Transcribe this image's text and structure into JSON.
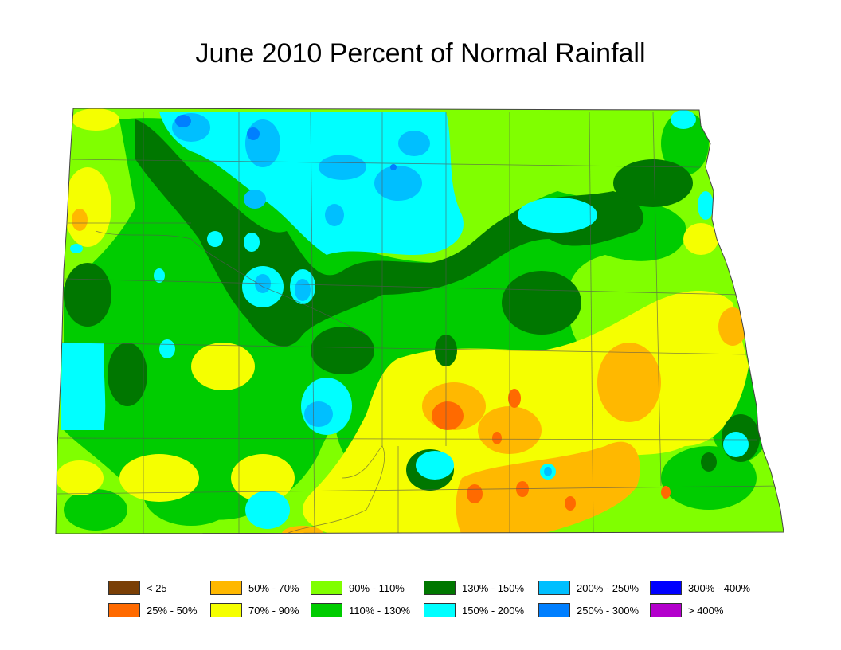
{
  "title": "June 2010 Percent of Normal Rainfall",
  "legend": [
    {
      "label": "< 25",
      "color": "#7a3f06"
    },
    {
      "label": "25% - 50%",
      "color": "#ff6a00"
    },
    {
      "label": "50% - 70%",
      "color": "#ffb800"
    },
    {
      "label": "70% - 90%",
      "color": "#f5ff00"
    },
    {
      "label": "90% - 110%",
      "color": "#80ff00"
    },
    {
      "label": "110% - 130%",
      "color": "#00cc00"
    },
    {
      "label": "130% - 150%",
      "color": "#007700"
    },
    {
      "label": "150% - 200%",
      "color": "#00ffff"
    },
    {
      "label": "200% - 250%",
      "color": "#00bfff"
    },
    {
      "label": "250% - 300%",
      "color": "#007fff"
    },
    {
      "label": "300% - 400%",
      "color": "#0000ff"
    },
    {
      "label": "> 400%",
      "color": "#b300cc"
    }
  ]
}
